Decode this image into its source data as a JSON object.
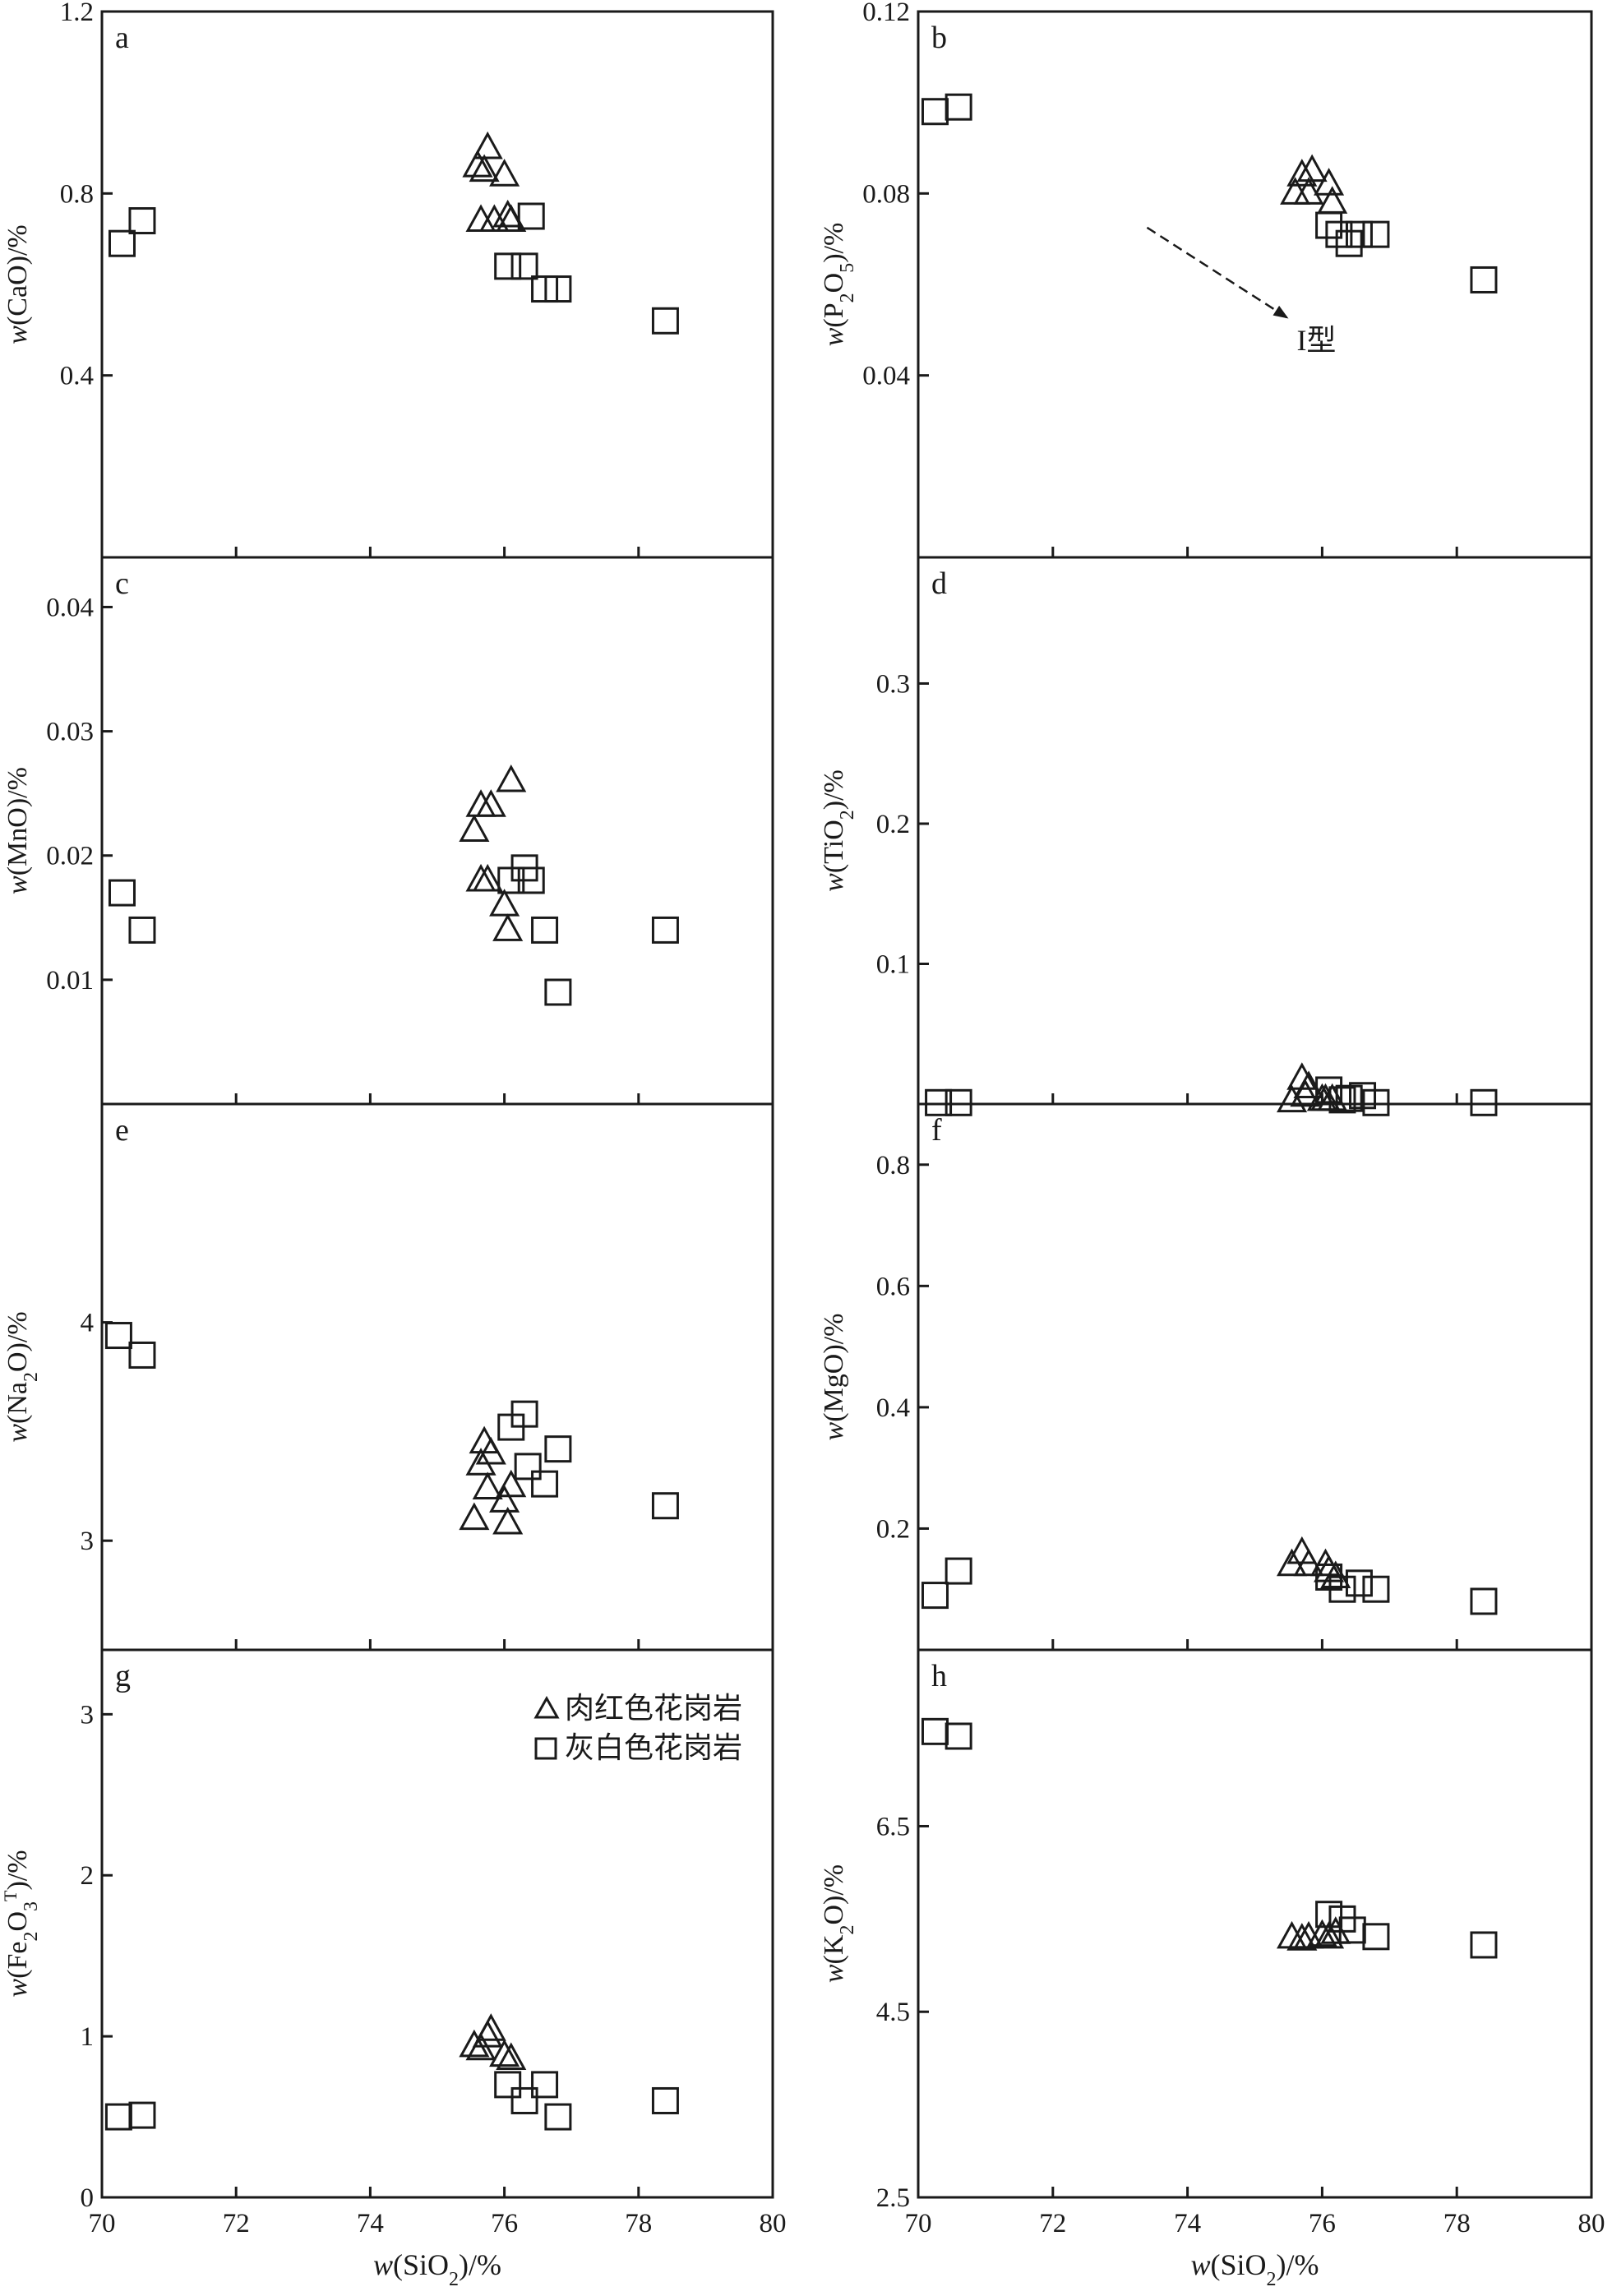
{
  "legend": {
    "series_1": "肉红色花岗岩",
    "series_2": "灰白色花岗岩"
  },
  "chart_data": [
    {
      "id": "a",
      "type": "scatter",
      "panel_label": "a",
      "xlim": [
        70,
        80
      ],
      "ylim": [
        0,
        1.2
      ],
      "ylabel_var": "w",
      "ylabel_rest": "(CaO)/%",
      "xlabel": "",
      "x_tick_labels": [],
      "y_ticks": [
        0.4,
        0.8,
        1.2
      ],
      "y_tick_labels": [
        "0.4",
        "0.8",
        "1.2"
      ],
      "series": [
        {
          "marker": "triangle",
          "points": [
            [
              75.6,
              0.86
            ],
            [
              75.75,
              0.9
            ],
            [
              75.7,
              0.85
            ],
            [
              76.0,
              0.84
            ],
            [
              75.65,
              0.74
            ],
            [
              75.85,
              0.74
            ],
            [
              76.1,
              0.74
            ],
            [
              76.05,
              0.75
            ]
          ]
        },
        {
          "marker": "square",
          "points": [
            [
              70.3,
              0.69
            ],
            [
              70.6,
              0.74
            ],
            [
              76.05,
              0.64
            ],
            [
              76.3,
              0.64
            ],
            [
              76.4,
              0.75
            ],
            [
              76.6,
              0.59
            ],
            [
              76.8,
              0.59
            ],
            [
              78.4,
              0.52
            ]
          ]
        }
      ]
    },
    {
      "id": "b",
      "type": "scatter",
      "panel_label": "b",
      "xlim": [
        70,
        80
      ],
      "ylim": [
        0,
        0.12
      ],
      "ylabel_var": "w",
      "ylabel_rest": "(P2O5)/%",
      "xlabel": "",
      "x_tick_labels": [],
      "y_ticks": [
        0.04,
        0.08,
        0.12
      ],
      "y_tick_labels": [
        "0.04",
        "0.08",
        "0.12"
      ],
      "annotation": {
        "text": "I型",
        "arrow_from": [
          73.4,
          0.0725
        ],
        "arrow_to": [
          75.5,
          0.0525
        ],
        "text_at": [
          75.5,
          0.0455
        ]
      },
      "series": [
        {
          "marker": "triangle",
          "points": [
            [
              75.7,
              0.084
            ],
            [
              75.85,
              0.085
            ],
            [
              75.6,
              0.08
            ],
            [
              75.8,
              0.08
            ],
            [
              76.1,
              0.082
            ],
            [
              76.15,
              0.078
            ]
          ]
        },
        {
          "marker": "square",
          "points": [
            [
              70.25,
              0.098
            ],
            [
              70.6,
              0.099
            ],
            [
              76.1,
              0.073
            ],
            [
              76.25,
              0.071
            ],
            [
              76.4,
              0.069
            ],
            [
              76.55,
              0.071
            ],
            [
              76.8,
              0.071
            ],
            [
              78.4,
              0.061
            ]
          ]
        }
      ]
    },
    {
      "id": "c",
      "type": "scatter",
      "panel_label": "c",
      "xlim": [
        70,
        80
      ],
      "ylim": [
        0,
        0.044
      ],
      "ylabel_var": "w",
      "ylabel_rest": "(MnO)/%",
      "xlabel": "",
      "x_tick_labels": [],
      "y_ticks": [
        0.01,
        0.02,
        0.03,
        0.04
      ],
      "y_tick_labels": [
        "0.01",
        "0.02",
        "0.03",
        "0.04"
      ],
      "series": [
        {
          "marker": "triangle",
          "points": [
            [
              75.55,
              0.022
            ],
            [
              75.65,
              0.024
            ],
            [
              75.8,
              0.024
            ],
            [
              76.1,
              0.026
            ],
            [
              75.65,
              0.018
            ],
            [
              75.75,
              0.018
            ],
            [
              76.0,
              0.016
            ],
            [
              76.05,
              0.014
            ]
          ]
        },
        {
          "marker": "square",
          "points": [
            [
              70.3,
              0.017
            ],
            [
              70.6,
              0.014
            ],
            [
              76.1,
              0.018
            ],
            [
              76.3,
              0.019
            ],
            [
              76.4,
              0.018
            ],
            [
              76.6,
              0.014
            ],
            [
              76.8,
              0.009
            ],
            [
              78.4,
              0.014
            ]
          ]
        }
      ]
    },
    {
      "id": "d",
      "type": "scatter",
      "panel_label": "d",
      "xlim": [
        70,
        80
      ],
      "ylim": [
        0,
        0.39
      ],
      "ylabel_var": "w",
      "ylabel_rest": "(TiO2)/%",
      "xlabel": "",
      "x_tick_labels": [],
      "y_ticks": [
        0.1,
        0.2,
        0.3
      ],
      "y_tick_labels": [
        "0.1",
        "0.2",
        "0.3"
      ],
      "series": [
        {
          "marker": "triangle",
          "points": [
            [
              75.55,
              0.002
            ],
            [
              75.7,
              0.018
            ],
            [
              75.8,
              0.012
            ],
            [
              75.75,
              0.006
            ],
            [
              76.0,
              0.003
            ],
            [
              76.05,
              0.003
            ],
            [
              76.15,
              0.003
            ]
          ]
        },
        {
          "marker": "square",
          "points": [
            [
              70.3,
              0.001
            ],
            [
              70.6,
              0.001
            ],
            [
              76.1,
              0.01
            ],
            [
              76.3,
              0.003
            ],
            [
              76.4,
              0.004
            ],
            [
              76.6,
              0.006
            ],
            [
              76.8,
              0.001
            ],
            [
              78.4,
              0.001
            ]
          ]
        }
      ]
    },
    {
      "id": "e",
      "type": "scatter",
      "panel_label": "e",
      "xlim": [
        70,
        80
      ],
      "ylim": [
        2.5,
        5.0
      ],
      "ylabel_var": "w",
      "ylabel_rest": "(Na2O)/%",
      "xlabel": "",
      "x_tick_labels": [],
      "y_ticks": [
        3,
        4
      ],
      "y_tick_labels": [
        "3",
        "4"
      ],
      "series": [
        {
          "marker": "triangle",
          "points": [
            [
              75.7,
              3.45
            ],
            [
              75.8,
              3.4
            ],
            [
              75.65,
              3.35
            ],
            [
              75.75,
              3.24
            ],
            [
              76.1,
              3.25
            ],
            [
              76.0,
              3.18
            ],
            [
              75.55,
              3.1
            ],
            [
              76.05,
              3.08
            ]
          ]
        },
        {
          "marker": "square",
          "points": [
            [
              70.25,
              3.94
            ],
            [
              70.6,
              3.85
            ],
            [
              76.1,
              3.52
            ],
            [
              76.3,
              3.58
            ],
            [
              76.35,
              3.34
            ],
            [
              76.6,
              3.26
            ],
            [
              76.8,
              3.42
            ],
            [
              78.4,
              3.16
            ]
          ]
        }
      ]
    },
    {
      "id": "f",
      "type": "scatter",
      "panel_label": "f",
      "xlim": [
        70,
        80
      ],
      "ylim": [
        0,
        0.9
      ],
      "ylabel_var": "w",
      "ylabel_rest": "(MgO)/%",
      "xlabel": "",
      "x_tick_labels": [],
      "y_ticks": [
        0.2,
        0.4,
        0.6,
        0.8
      ],
      "y_tick_labels": [
        "0.2",
        "0.4",
        "0.6",
        "0.8"
      ],
      "series": [
        {
          "marker": "triangle",
          "points": [
            [
              75.55,
              0.14
            ],
            [
              75.7,
              0.16
            ],
            [
              75.8,
              0.14
            ],
            [
              76.05,
              0.14
            ],
            [
              76.1,
              0.13
            ],
            [
              76.2,
              0.12
            ]
          ]
        },
        {
          "marker": "square",
          "points": [
            [
              70.25,
              0.09
            ],
            [
              70.6,
              0.13
            ],
            [
              76.1,
              0.12
            ],
            [
              76.3,
              0.1
            ],
            [
              76.55,
              0.11
            ],
            [
              76.8,
              0.1
            ],
            [
              78.4,
              0.08
            ]
          ]
        }
      ]
    },
    {
      "id": "g",
      "type": "scatter",
      "panel_label": "g",
      "xlim": [
        70,
        80
      ],
      "ylim": [
        0,
        3.4
      ],
      "ylabel_var": "w",
      "ylabel_rest": "(Fe2O3T)/%",
      "xlabel": "w(SiO2)/%",
      "x_ticks": [
        70,
        72,
        74,
        76,
        78,
        80
      ],
      "x_tick_labels": [
        "70",
        "72",
        "74",
        "76",
        "78",
        "80"
      ],
      "y_ticks": [
        0,
        1,
        2,
        3
      ],
      "y_tick_labels": [
        "0",
        "1",
        "2",
        "3"
      ],
      "series": [
        {
          "marker": "triangle",
          "points": [
            [
              75.55,
              0.94
            ],
            [
              75.65,
              0.92
            ],
            [
              75.75,
              1.0
            ],
            [
              75.8,
              1.04
            ],
            [
              76.0,
              0.88
            ],
            [
              76.1,
              0.86
            ]
          ]
        },
        {
          "marker": "square",
          "points": [
            [
              70.25,
              0.5
            ],
            [
              70.6,
              0.51
            ],
            [
              76.05,
              0.7
            ],
            [
              76.3,
              0.6
            ],
            [
              76.6,
              0.7
            ],
            [
              76.8,
              0.5
            ],
            [
              78.4,
              0.6
            ]
          ]
        }
      ]
    },
    {
      "id": "h",
      "type": "scatter",
      "panel_label": "h",
      "xlim": [
        70,
        80
      ],
      "ylim": [
        2.5,
        8.4
      ],
      "ylabel_var": "w",
      "ylabel_rest": "(K2O)/%",
      "xlabel": "w(SiO2)/%",
      "x_ticks": [
        70,
        72,
        74,
        76,
        78,
        80
      ],
      "x_tick_labels": [
        "70",
        "72",
        "74",
        "76",
        "78",
        "80"
      ],
      "y_ticks": [
        2.5,
        4.5,
        6.5
      ],
      "y_tick_labels": [
        "2.5",
        "4.5",
        "6.5"
      ],
      "series": [
        {
          "marker": "triangle",
          "points": [
            [
              75.55,
              5.3
            ],
            [
              75.7,
              5.28
            ],
            [
              75.8,
              5.3
            ],
            [
              76.0,
              5.32
            ],
            [
              76.1,
              5.3
            ],
            [
              76.2,
              5.35
            ]
          ]
        },
        {
          "marker": "square",
          "points": [
            [
              70.25,
              7.52
            ],
            [
              70.6,
              7.47
            ],
            [
              76.1,
              5.55
            ],
            [
              76.3,
              5.5
            ],
            [
              76.45,
              5.38
            ],
            [
              76.8,
              5.31
            ],
            [
              78.4,
              5.22
            ]
          ]
        }
      ]
    }
  ]
}
